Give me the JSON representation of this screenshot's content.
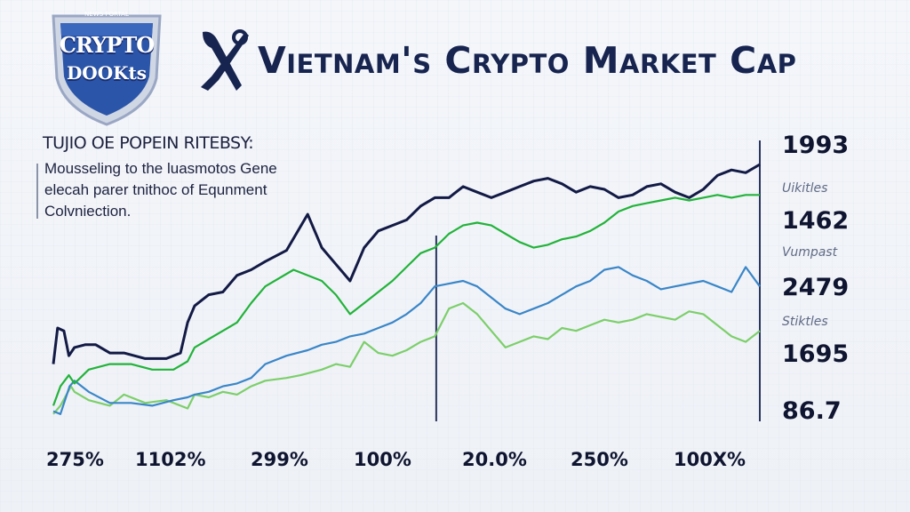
{
  "logo": {
    "small_text": "NEWS PORTAL",
    "line1": "CRYPTO",
    "line2": "DOOKts",
    "shield_color": "#2b55a8",
    "shield_border": "#9aa7c4"
  },
  "header": {
    "title": "Vietnam's Crypto Market Cap"
  },
  "annotation": {
    "heading": "TUJIO OE POPEIN RITEBSY:",
    "lines": [
      "Mousseling to the luasmotos Gene",
      "elecah parer tnithoc of Equnment",
      "Colvniection."
    ]
  },
  "right_labels": [
    {
      "text": "1993",
      "style": "big"
    },
    {
      "text": "Uikitles",
      "style": "small"
    },
    {
      "text": "1462",
      "style": "big"
    },
    {
      "text": "Vumpast",
      "style": "small"
    },
    {
      "text": "2479",
      "style": "big"
    },
    {
      "text": "Stiktles",
      "style": "small"
    },
    {
      "text": "1695",
      "style": "big"
    },
    {
      "text": "86.7",
      "style": "big"
    }
  ],
  "chart_data": {
    "type": "line",
    "title": "Vietnam's Crypto Market Cap",
    "x_tick_labels": [
      "275%",
      "1102%",
      "299%",
      "100%",
      "20.0%",
      "250%",
      "100X%"
    ],
    "y_range": [
      0,
      100
    ],
    "x_range": [
      0,
      100
    ],
    "colors": {
      "navy": "#121a45",
      "green": "#22b33a",
      "blue": "#3a86c8",
      "light_green": "#7ccf6a",
      "divider": "#2a3560"
    },
    "dividers_x": [
      54.2,
      100
    ],
    "series": [
      {
        "name": "navy",
        "color": "#121a45",
        "x": [
          0,
          0.6,
          1.5,
          2.2,
          3,
          4.5,
          6,
          8,
          10,
          13,
          16,
          18,
          19,
          20,
          22,
          24,
          26,
          28,
          30,
          33,
          36,
          38,
          40,
          42,
          44,
          46,
          48,
          50,
          52,
          54,
          56,
          58,
          60,
          62,
          64,
          66,
          68,
          70,
          72,
          74,
          76,
          78,
          80,
          82,
          84,
          86,
          88,
          90,
          92,
          94,
          96,
          98,
          100
        ],
        "y": [
          20,
          33,
          32,
          23,
          26,
          27,
          27,
          24,
          24,
          22,
          22,
          24,
          35,
          41,
          45,
          46,
          52,
          54,
          57,
          61,
          74,
          62,
          56,
          50,
          62,
          68,
          70,
          72,
          77,
          80,
          80,
          84,
          82,
          80,
          82,
          84,
          86,
          87,
          85,
          82,
          84,
          83,
          80,
          81,
          84,
          85,
          82,
          80,
          83,
          88,
          90,
          89,
          92
        ]
      },
      {
        "name": "green",
        "color": "#22b33a",
        "x": [
          0,
          1,
          2.2,
          3,
          5,
          8,
          11,
          14,
          17,
          19,
          20,
          22,
          24,
          26,
          28,
          30,
          34,
          38,
          40,
          42,
          44,
          46,
          48,
          50,
          52,
          54,
          56,
          58,
          60,
          62,
          64,
          66,
          68,
          70,
          72,
          74,
          76,
          78,
          80,
          82,
          84,
          86,
          88,
          90,
          92,
          94,
          96,
          98,
          100
        ],
        "y": [
          5,
          12,
          16,
          13,
          18,
          20,
          20,
          18,
          18,
          21,
          26,
          29,
          32,
          35,
          42,
          48,
          54,
          50,
          45,
          38,
          42,
          46,
          50,
          55,
          60,
          62,
          67,
          70,
          71,
          70,
          67,
          64,
          62,
          63,
          65,
          66,
          68,
          71,
          75,
          77,
          78,
          79,
          80,
          79,
          80,
          81,
          80,
          81,
          81
        ]
      },
      {
        "name": "blue",
        "color": "#3a86c8",
        "x": [
          0,
          1,
          2.3,
          3,
          5,
          8,
          11,
          14,
          17,
          19,
          20,
          22,
          24,
          26,
          28,
          30,
          33,
          36,
          38,
          40,
          42,
          44,
          46,
          48,
          50,
          52,
          54,
          56,
          58,
          60,
          62,
          64,
          66,
          68,
          70,
          72,
          74,
          76,
          78,
          80,
          82,
          84,
          86,
          88,
          90,
          92,
          94,
          96,
          98,
          100
        ],
        "y": [
          3,
          2,
          12,
          14,
          10,
          6,
          6,
          5,
          7,
          8,
          9,
          10,
          12,
          13,
          15,
          20,
          23,
          25,
          27,
          28,
          30,
          31,
          33,
          35,
          38,
          42,
          48,
          49,
          50,
          48,
          44,
          40,
          38,
          40,
          42,
          45,
          48,
          50,
          54,
          55,
          52,
          50,
          47,
          48,
          49,
          50,
          48,
          46,
          55,
          48
        ]
      },
      {
        "name": "light_green",
        "color": "#7ccf6a",
        "x": [
          0,
          1,
          2.5,
          3,
          5,
          8,
          10,
          13,
          16,
          18,
          19,
          20,
          22,
          24,
          26,
          28,
          30,
          33,
          35,
          38,
          40,
          42,
          44,
          46,
          48,
          50,
          52,
          54,
          56,
          58,
          60,
          62,
          64,
          66,
          68,
          70,
          72,
          74,
          76,
          78,
          80,
          82,
          84,
          86,
          88,
          90,
          92,
          94,
          96,
          98,
          100
        ],
        "y": [
          2,
          5,
          12,
          10,
          7,
          5,
          9,
          6,
          7,
          5,
          4,
          9,
          8,
          10,
          9,
          12,
          14,
          15,
          16,
          18,
          20,
          19,
          28,
          24,
          23,
          25,
          28,
          30,
          40,
          42,
          38,
          32,
          26,
          28,
          30,
          29,
          33,
          32,
          34,
          36,
          35,
          36,
          38,
          37,
          36,
          39,
          38,
          34,
          30,
          28,
          32
        ]
      }
    ]
  }
}
